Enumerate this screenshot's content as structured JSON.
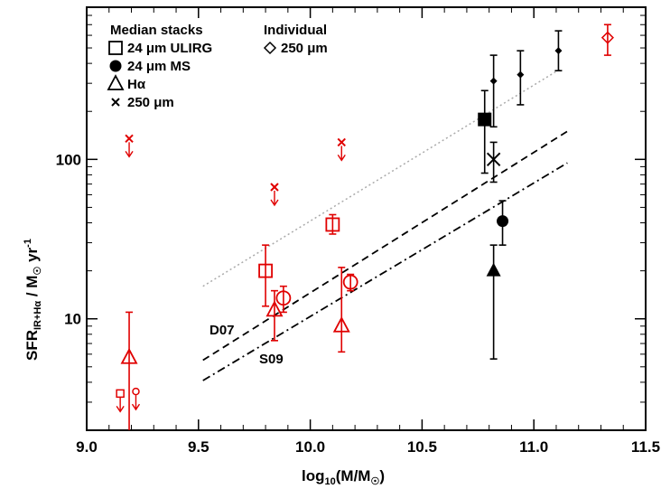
{
  "chart_data": {
    "type": "scatter",
    "x_axis": {
      "label_main": "log",
      "label_sub": "10",
      "label_rest": "(M/M",
      "label_sun": "☉",
      "label_close": ")",
      "range": [
        9.0,
        11.5
      ],
      "ticks": [
        "9.0",
        "9.5",
        "10.0",
        "10.5",
        "11.0",
        "11.5"
      ]
    },
    "y_axis": {
      "label_main": "SFR",
      "label_sub": "IR+Hα",
      "label_rest": " / M",
      "label_sun": "☉",
      "label_unit": " yr",
      "label_sup": "-1",
      "scale": "log",
      "range": [
        2.0,
        900
      ],
      "ticks": [
        "10",
        "100"
      ]
    },
    "legend_left": {
      "title": "Median stacks",
      "items": [
        {
          "marker": "open-square",
          "label": "24 μm ULIRG"
        },
        {
          "marker": "filled-circle",
          "label": "24 μm MS"
        },
        {
          "marker": "open-triangle",
          "label": "Hα"
        },
        {
          "marker": "cross",
          "label": "250 μm"
        }
      ]
    },
    "legend_right": {
      "title": "Individual",
      "items": [
        {
          "marker": "open-diamond",
          "label": "250 μm"
        }
      ]
    },
    "relations": [
      {
        "label": "D07",
        "style": "dashed",
        "x": [
          9.52,
          11.15
        ],
        "y": [
          5.5,
          150
        ]
      },
      {
        "label": "S09",
        "style": "dashdot",
        "x": [
          9.52,
          11.15
        ],
        "y": [
          4.1,
          95
        ]
      },
      {
        "label": "",
        "style": "dotted",
        "x": [
          9.52,
          11.12
        ],
        "y": [
          16,
          370
        ]
      }
    ],
    "series": [
      {
        "color": "#e00000",
        "points": [
          {
            "x": 9.8,
            "y": 20,
            "marker": "open-square",
            "err": [
              12,
              29
            ]
          },
          {
            "x": 10.1,
            "y": 39,
            "marker": "open-square",
            "err": [
              34,
              45
            ]
          },
          {
            "x": 9.88,
            "y": 13.5,
            "marker": "open-circle",
            "err": [
              11,
              16
            ]
          },
          {
            "x": 10.18,
            "y": 17,
            "marker": "open-circle",
            "err": [
              15,
              19
            ]
          },
          {
            "x": 9.84,
            "y": 11.3,
            "marker": "open-triangle",
            "err": [
              7.3,
              15
            ]
          },
          {
            "x": 10.14,
            "y": 9.0,
            "marker": "open-triangle",
            "err": [
              6.2,
              21
            ]
          },
          {
            "x": 9.19,
            "y": 5.7,
            "marker": "open-triangle",
            "err": [
              1.8,
              11
            ]
          },
          {
            "x": 9.15,
            "y": 3.4,
            "marker": "open-square-small",
            "upper_limit": true
          },
          {
            "x": 9.22,
            "y": 3.5,
            "marker": "open-circle-small",
            "upper_limit": true
          },
          {
            "x": 9.19,
            "y": 135,
            "marker": "cross",
            "upper_limit": true
          },
          {
            "x": 9.84,
            "y": 67,
            "marker": "cross",
            "upper_limit": true
          },
          {
            "x": 10.14,
            "y": 128,
            "marker": "cross",
            "upper_limit": true
          },
          {
            "x": 11.33,
            "y": 580,
            "marker": "open-diamond",
            "err": [
              450,
              700
            ]
          }
        ]
      },
      {
        "color": "#000000",
        "points": [
          {
            "x": 10.78,
            "y": 178,
            "marker": "filled-square",
            "err": [
              82,
              270
            ]
          },
          {
            "x": 10.82,
            "y": 100,
            "marker": "cross-large",
            "err": [
              72,
              128
            ]
          },
          {
            "x": 10.86,
            "y": 41,
            "marker": "filled-circle",
            "err": [
              29,
              55
            ]
          },
          {
            "x": 10.82,
            "y": 20,
            "marker": "filled-triangle",
            "err": [
              5.6,
              29
            ]
          },
          {
            "x": 10.82,
            "y": 310,
            "marker": "filled-diamond",
            "err": [
              160,
              450
            ]
          },
          {
            "x": 10.94,
            "y": 340,
            "marker": "filled-diamond",
            "err": [
              220,
              480
            ]
          },
          {
            "x": 11.11,
            "y": 480,
            "marker": "filled-diamond",
            "err": [
              360,
              640
            ]
          }
        ]
      }
    ]
  }
}
